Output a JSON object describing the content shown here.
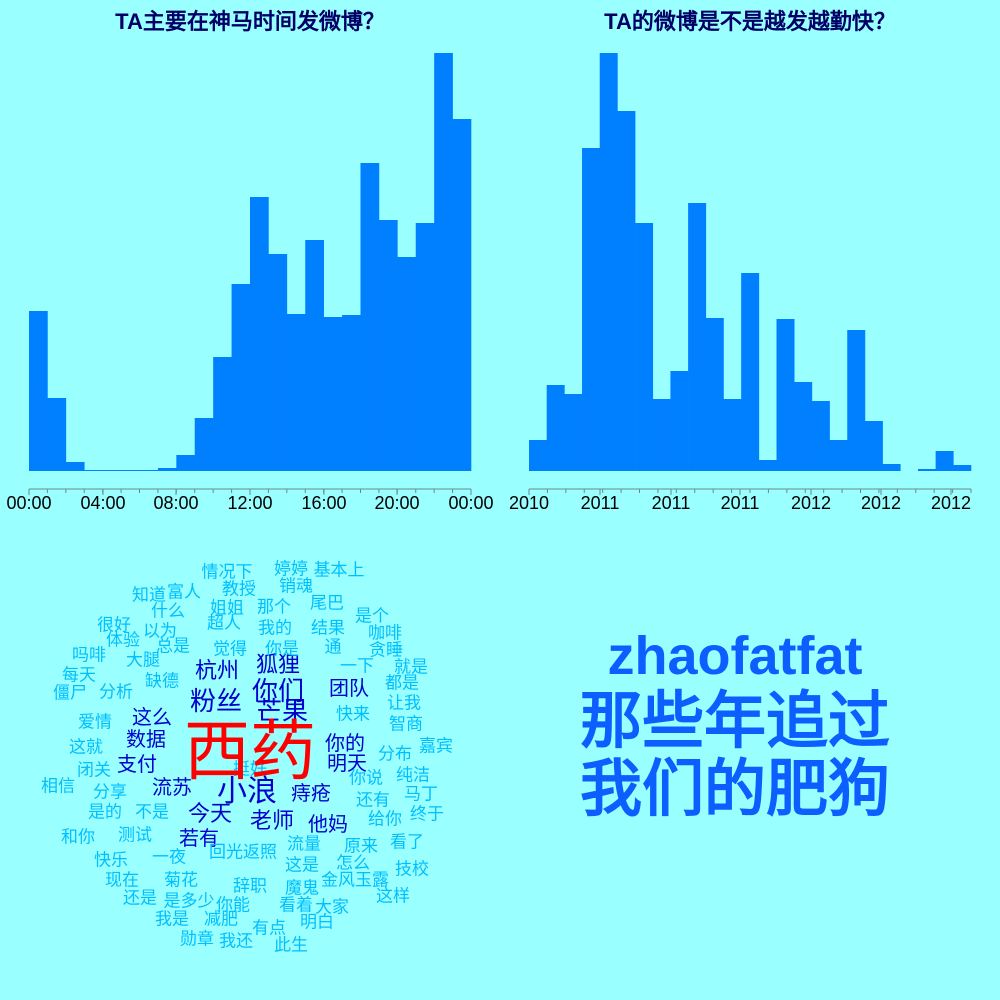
{
  "chart_data": [
    {
      "type": "bar",
      "title": "TA主要在神马时间发微博？",
      "tick_labels": [
        "00:00",
        "04:00",
        "08:00",
        "12:00",
        "16:00",
        "20:00",
        "00:00"
      ],
      "tick_hours": [
        0,
        4,
        8,
        12,
        16,
        20,
        24
      ],
      "x_range": [
        0,
        24
      ],
      "bin_hours": 1,
      "values": [
        160,
        73,
        9,
        1,
        1,
        1,
        1,
        3,
        16,
        53,
        114,
        187,
        274,
        217,
        157,
        231,
        154,
        156,
        308,
        251,
        214,
        248,
        418,
        352
      ],
      "ylim": [
        0,
        420
      ],
      "color": "#007fff"
    },
    {
      "type": "bar",
      "title": "TA的微博是不是越发越勤快？",
      "tick_labels": [
        "2010",
        "2011",
        "2011",
        "2011",
        "2012",
        "2012",
        "2012"
      ],
      "values": [
        31,
        86,
        77,
        323,
        418,
        360,
        248,
        72,
        100,
        268,
        153,
        72,
        198,
        11,
        152,
        89,
        70,
        31,
        141,
        50,
        7,
        0,
        2,
        20,
        6
      ],
      "ylim": [
        0,
        420
      ],
      "color": "#007fff"
    }
  ],
  "wordcloud": {
    "words": [
      {
        "text": "西药",
        "color": "#ff0000",
        "size": 2.2,
        "fs": 66
      },
      {
        "text": "小浪",
        "color": "#0000cc",
        "size": 1.3,
        "fs": 30
      },
      {
        "text": "粉丝",
        "color": "#0000cc",
        "size": 1.2,
        "fs": 26
      },
      {
        "text": "芒果",
        "color": "#0000cc",
        "size": 1.2,
        "fs": 26
      },
      {
        "text": "你们",
        "color": "#0000cc",
        "size": 1.2,
        "fs": 26
      },
      {
        "text": "今天",
        "color": "#0000cc",
        "size": 1.1,
        "fs": 22
      },
      {
        "text": "老师",
        "color": "#0000cc",
        "size": 1.1,
        "fs": 22
      },
      {
        "text": "杭州",
        "color": "#0000cc",
        "size": 1.1,
        "fs": 22
      },
      {
        "text": "狐狸",
        "color": "#0000cc",
        "size": 1.1,
        "fs": 22
      },
      {
        "text": "明天",
        "color": "#0000cc",
        "size": 1.0,
        "fs": 20
      },
      {
        "text": "这么",
        "color": "#0000cc",
        "size": 1.0,
        "fs": 20
      },
      {
        "text": "数据",
        "color": "#0000cc",
        "size": 1.0,
        "fs": 20
      },
      {
        "text": "支付",
        "color": "#0000cc",
        "size": 1.0,
        "fs": 20
      },
      {
        "text": "流苏",
        "color": "#0000cc",
        "size": 1.0,
        "fs": 20
      },
      {
        "text": "若有",
        "color": "#0000cc",
        "size": 1.0,
        "fs": 20
      },
      {
        "text": "他妈",
        "color": "#0000cc",
        "size": 1.0,
        "fs": 20
      },
      {
        "text": "痔疮",
        "color": "#0000cc",
        "size": 1.0,
        "fs": 20
      },
      {
        "text": "团队",
        "color": "#0000cc",
        "size": 1.0,
        "fs": 20
      },
      {
        "text": "你的",
        "color": "#0000cc",
        "size": 1.0,
        "fs": 20
      },
      {
        "text": "情况下",
        "color": "#00bfff",
        "size": 0.8,
        "fs": 17
      },
      {
        "text": "婷婷",
        "color": "#00bfff",
        "size": 0.8,
        "fs": 17
      },
      {
        "text": "基本上",
        "color": "#00bfff",
        "size": 0.8,
        "fs": 17
      },
      {
        "text": "教授",
        "color": "#00bfff",
        "size": 0.8,
        "fs": 17
      },
      {
        "text": "销魂",
        "color": "#00bfff",
        "size": 0.8,
        "fs": 17
      },
      {
        "text": "知道",
        "color": "#00bfff",
        "size": 0.8,
        "fs": 17
      },
      {
        "text": "富人",
        "color": "#00bfff",
        "size": 0.8,
        "fs": 17
      },
      {
        "text": "什么",
        "color": "#00bfff",
        "size": 0.8,
        "fs": 17
      },
      {
        "text": "姐姐",
        "color": "#00bfff",
        "size": 0.8,
        "fs": 17
      },
      {
        "text": "那个",
        "color": "#00bfff",
        "size": 0.8,
        "fs": 17
      },
      {
        "text": "尾巴",
        "color": "#00bfff",
        "size": 0.8,
        "fs": 17
      },
      {
        "text": "是个",
        "color": "#00bfff",
        "size": 0.8,
        "fs": 17
      },
      {
        "text": "很好",
        "color": "#00bfff",
        "size": 0.8,
        "fs": 17
      },
      {
        "text": "以为",
        "color": "#00bfff",
        "size": 0.8,
        "fs": 17
      },
      {
        "text": "超人",
        "color": "#00bfff",
        "size": 0.8,
        "fs": 17
      },
      {
        "text": "我的",
        "color": "#00bfff",
        "size": 0.8,
        "fs": 17
      },
      {
        "text": "结果",
        "color": "#00bfff",
        "size": 0.8,
        "fs": 17
      },
      {
        "text": "咖啡",
        "color": "#00bfff",
        "size": 0.8,
        "fs": 17
      },
      {
        "text": "体验",
        "color": "#00bfff",
        "size": 0.8,
        "fs": 17
      },
      {
        "text": "总是",
        "color": "#00bfff",
        "size": 0.8,
        "fs": 17
      },
      {
        "text": "觉得",
        "color": "#00bfff",
        "size": 0.8,
        "fs": 17
      },
      {
        "text": "你是",
        "color": "#00bfff",
        "size": 0.8,
        "fs": 17
      },
      {
        "text": "通",
        "color": "#00bfff",
        "size": 0.8,
        "fs": 17
      },
      {
        "text": "贪睡",
        "color": "#00bfff",
        "size": 0.8,
        "fs": 17
      },
      {
        "text": "吗啡",
        "color": "#00bfff",
        "size": 0.8,
        "fs": 17
      },
      {
        "text": "大腿",
        "color": "#00bfff",
        "size": 0.8,
        "fs": 17
      },
      {
        "text": "一下",
        "color": "#00bfff",
        "size": 0.8,
        "fs": 17
      },
      {
        "text": "就是",
        "color": "#00bfff",
        "size": 0.8,
        "fs": 17
      },
      {
        "text": "每天",
        "color": "#00bfff",
        "size": 0.8,
        "fs": 17
      },
      {
        "text": "缺德",
        "color": "#00bfff",
        "size": 0.8,
        "fs": 17
      },
      {
        "text": "都是",
        "color": "#00bfff",
        "size": 0.8,
        "fs": 17
      },
      {
        "text": "僵尸",
        "color": "#00bfff",
        "size": 0.8,
        "fs": 17
      },
      {
        "text": "分析",
        "color": "#00bfff",
        "size": 0.8,
        "fs": 17
      },
      {
        "text": "让我",
        "color": "#00bfff",
        "size": 0.8,
        "fs": 17
      },
      {
        "text": "快来",
        "color": "#00bfff",
        "size": 0.8,
        "fs": 17
      },
      {
        "text": "爱情",
        "color": "#00bfff",
        "size": 0.8,
        "fs": 17
      },
      {
        "text": "智商",
        "color": "#00bfff",
        "size": 0.8,
        "fs": 17
      },
      {
        "text": "这就",
        "color": "#00bfff",
        "size": 0.8,
        "fs": 17
      },
      {
        "text": "分布",
        "color": "#00bfff",
        "size": 0.8,
        "fs": 17
      },
      {
        "text": "嘉宾",
        "color": "#00bfff",
        "size": 0.8,
        "fs": 17
      },
      {
        "text": "闭关",
        "color": "#00bfff",
        "size": 0.8,
        "fs": 17
      },
      {
        "text": "你说",
        "color": "#00bfff",
        "size": 0.8,
        "fs": 17
      },
      {
        "text": "纯洁",
        "color": "#00bfff",
        "size": 0.8,
        "fs": 17
      },
      {
        "text": "相信",
        "color": "#00bfff",
        "size": 0.8,
        "fs": 17
      },
      {
        "text": "分享",
        "color": "#00bfff",
        "size": 0.8,
        "fs": 17
      },
      {
        "text": "还有",
        "color": "#00bfff",
        "size": 0.8,
        "fs": 17
      },
      {
        "text": "马丁",
        "color": "#00bfff",
        "size": 0.8,
        "fs": 17
      },
      {
        "text": "是的",
        "color": "#00bfff",
        "size": 0.8,
        "fs": 17
      },
      {
        "text": "不是",
        "color": "#00bfff",
        "size": 0.8,
        "fs": 17
      },
      {
        "text": "给你",
        "color": "#00bfff",
        "size": 0.8,
        "fs": 17
      },
      {
        "text": "终于",
        "color": "#00bfff",
        "size": 0.8,
        "fs": 17
      },
      {
        "text": "和你",
        "color": "#00bfff",
        "size": 0.8,
        "fs": 17
      },
      {
        "text": "测试",
        "color": "#00bfff",
        "size": 0.8,
        "fs": 17
      },
      {
        "text": "流量",
        "color": "#00bfff",
        "size": 0.8,
        "fs": 17
      },
      {
        "text": "原来",
        "color": "#00bfff",
        "size": 0.8,
        "fs": 17
      },
      {
        "text": "看了",
        "color": "#00bfff",
        "size": 0.8,
        "fs": 17
      },
      {
        "text": "快乐",
        "color": "#00bfff",
        "size": 0.8,
        "fs": 17
      },
      {
        "text": "一夜",
        "color": "#00bfff",
        "size": 0.8,
        "fs": 17
      },
      {
        "text": "回光返照",
        "color": "#00bfff",
        "size": 0.8,
        "fs": 17
      },
      {
        "text": "怎么",
        "color": "#00bfff",
        "size": 0.8,
        "fs": 17
      },
      {
        "text": "技校",
        "color": "#00bfff",
        "size": 0.8,
        "fs": 17
      },
      {
        "text": "现在",
        "color": "#00bfff",
        "size": 0.8,
        "fs": 17
      },
      {
        "text": "菊花",
        "color": "#00bfff",
        "size": 0.8,
        "fs": 17
      },
      {
        "text": "这是",
        "color": "#00bfff",
        "size": 0.8,
        "fs": 17
      },
      {
        "text": "金风玉露",
        "color": "#00bfff",
        "size": 0.8,
        "fs": 17
      },
      {
        "text": "还是",
        "color": "#00bfff",
        "size": 0.8,
        "fs": 17
      },
      {
        "text": "辞职",
        "color": "#00bfff",
        "size": 0.8,
        "fs": 17
      },
      {
        "text": "魔鬼",
        "color": "#00bfff",
        "size": 0.8,
        "fs": 17
      },
      {
        "text": "这样",
        "color": "#00bfff",
        "size": 0.8,
        "fs": 17
      },
      {
        "text": "是多少",
        "color": "#00bfff",
        "size": 0.8,
        "fs": 17
      },
      {
        "text": "你能",
        "color": "#00bfff",
        "size": 0.8,
        "fs": 17
      },
      {
        "text": "看着",
        "color": "#00bfff",
        "size": 0.8,
        "fs": 17
      },
      {
        "text": "大家",
        "color": "#00bfff",
        "size": 0.8,
        "fs": 17
      },
      {
        "text": "我是",
        "color": "#00bfff",
        "size": 0.8,
        "fs": 17
      },
      {
        "text": "减肥",
        "color": "#00bfff",
        "size": 0.8,
        "fs": 17
      },
      {
        "text": "明白",
        "color": "#00bfff",
        "size": 0.8,
        "fs": 17
      },
      {
        "text": "勋章",
        "color": "#00bfff",
        "size": 0.8,
        "fs": 17
      },
      {
        "text": "我还",
        "color": "#00bfff",
        "size": 0.8,
        "fs": 17
      },
      {
        "text": "有点",
        "color": "#00bfff",
        "size": 0.8,
        "fs": 17
      },
      {
        "text": "此生",
        "color": "#00bfff",
        "size": 0.8,
        "fs": 17
      },
      {
        "text": "挺好",
        "color": "#00bfff",
        "size": 0.8,
        "fs": 17
      }
    ]
  },
  "title_block": {
    "user": "zhaofatfat",
    "line1": "那些年追过",
    "line2": "我们的肥狗"
  }
}
